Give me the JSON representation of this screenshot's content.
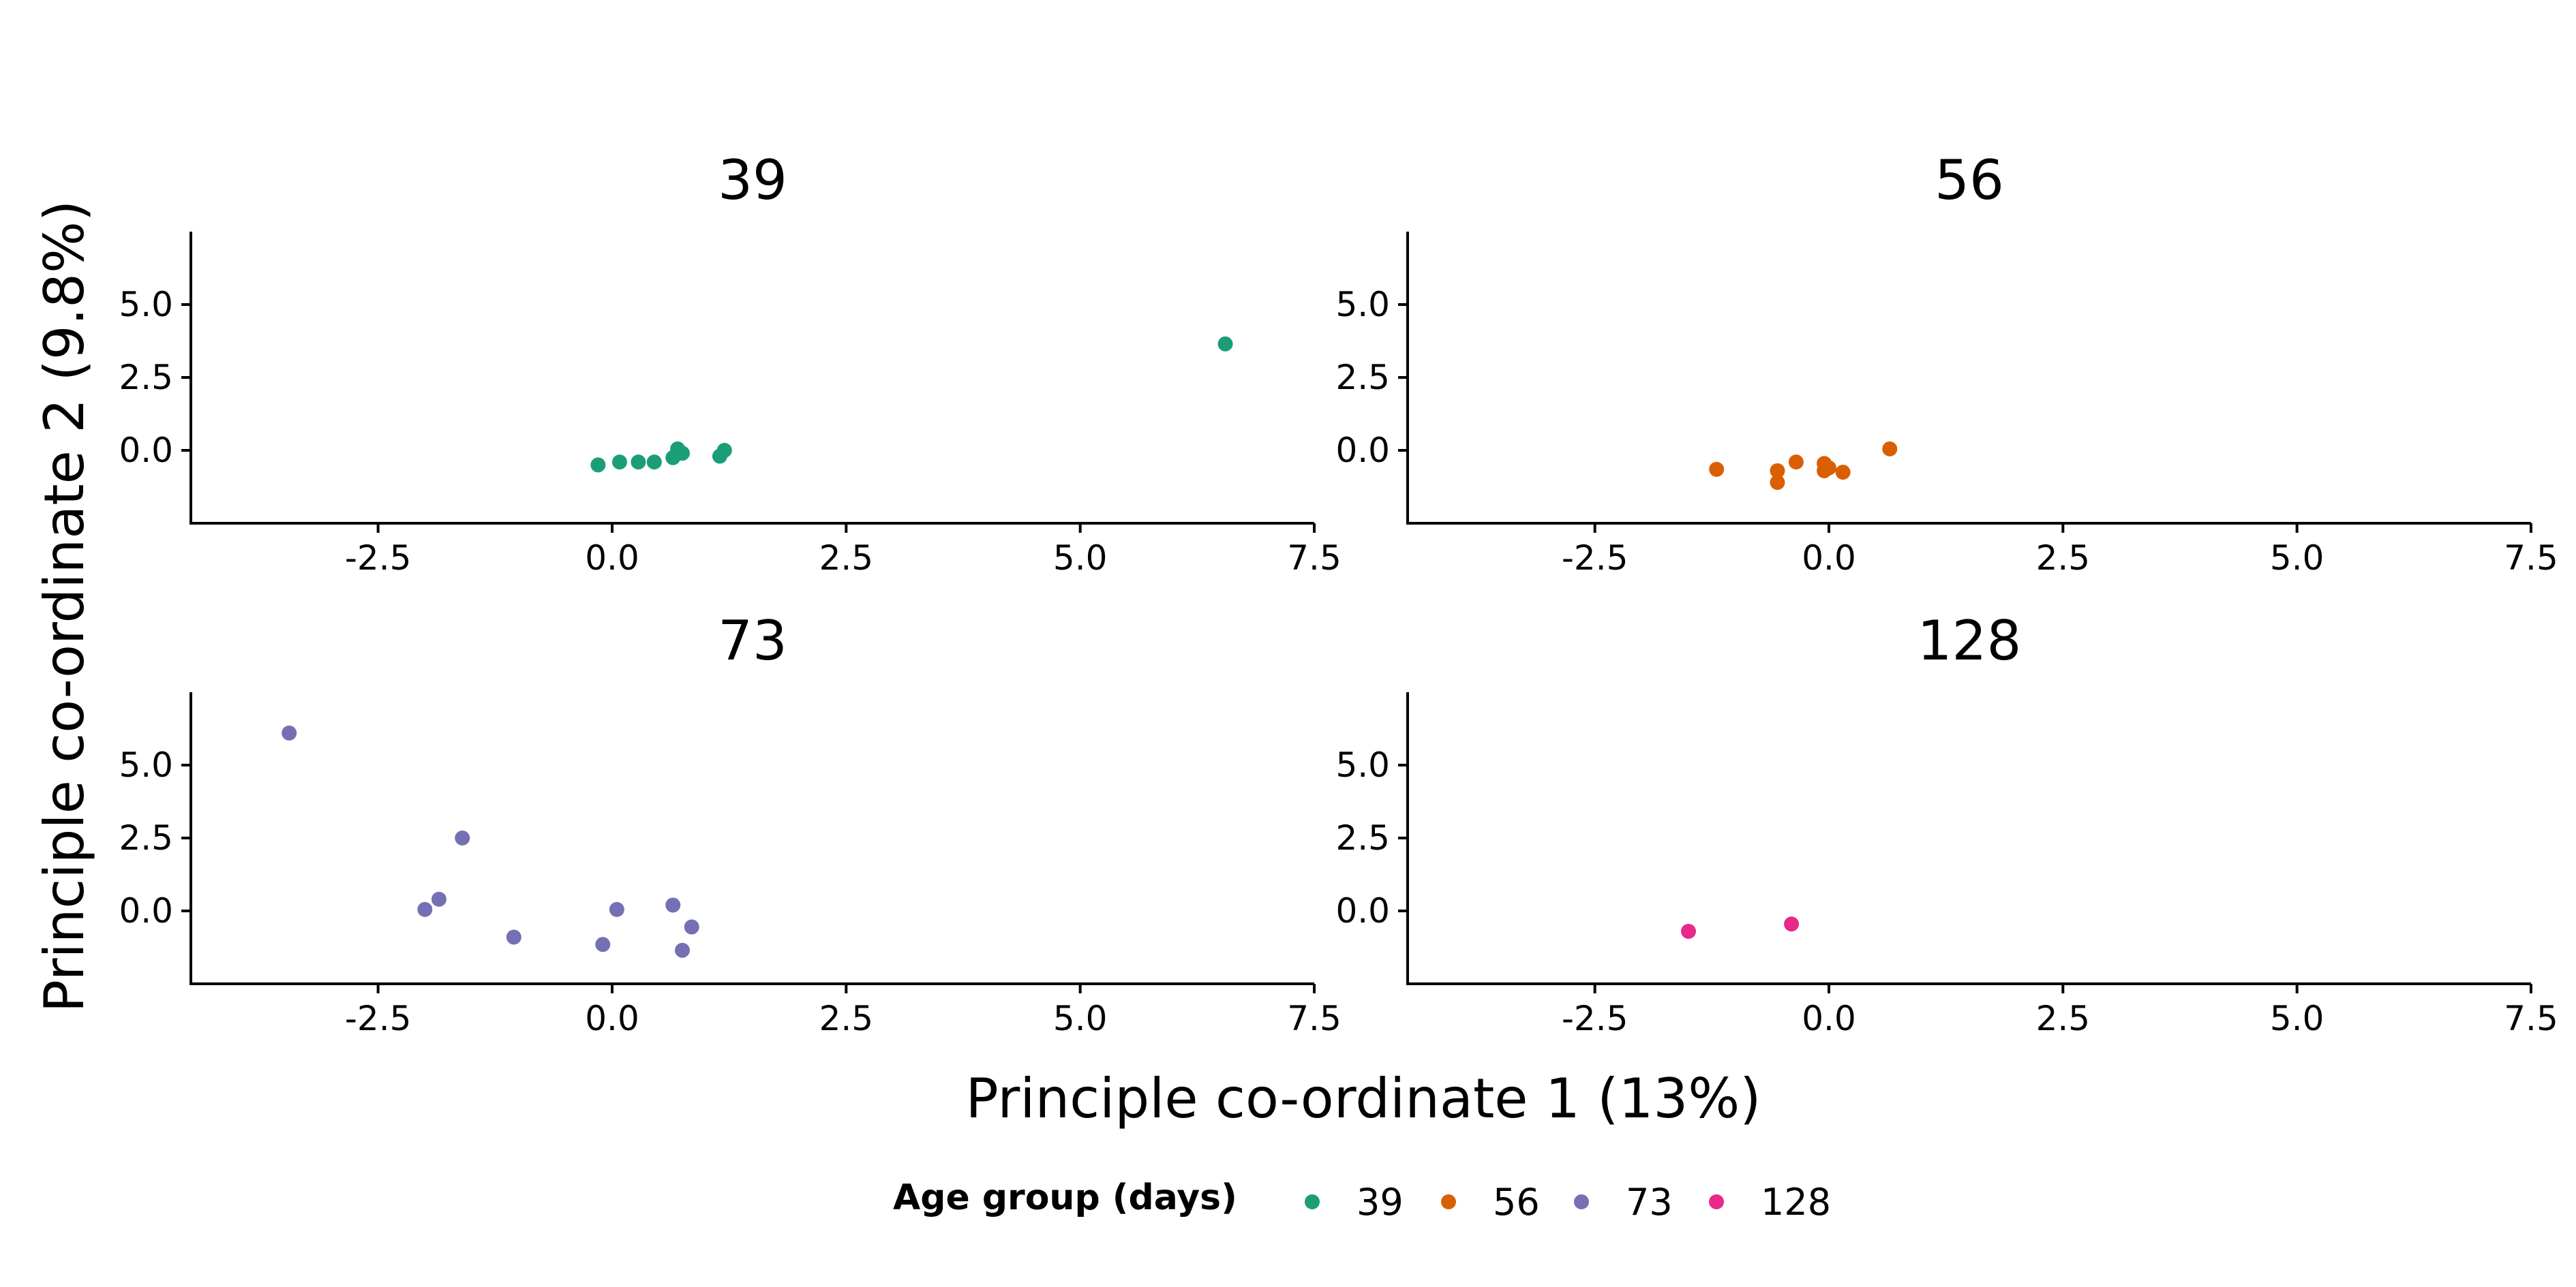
{
  "chart_data": {
    "type": "scatter",
    "xlabel": "Principle co-ordinate 1 (13%)",
    "ylabel": "Principle co-ordinate 2 (9.8%)",
    "xlim": [
      -4.5,
      7.5
    ],
    "ylim": [
      -2.5,
      7.5
    ],
    "x_ticks": [
      -2.5,
      0.0,
      2.5,
      5.0,
      7.5
    ],
    "x_tick_labels": [
      "-2.5",
      "0.0",
      "2.5",
      "5.0",
      "7.5"
    ],
    "y_ticks": [
      0.0,
      2.5,
      5.0
    ],
    "y_tick_labels": [
      "0.0",
      "2.5",
      "5.0"
    ],
    "grid": false,
    "legend": {
      "title": "Age group (days)",
      "position": "bottom",
      "entries": [
        "39",
        "56",
        "73",
        "128"
      ]
    },
    "panels": [
      {
        "title": "39",
        "color": "#1b9e77",
        "points": [
          [
            -0.15,
            -0.5
          ],
          [
            0.08,
            -0.4
          ],
          [
            0.28,
            -0.4
          ],
          [
            0.45,
            -0.4
          ],
          [
            0.65,
            -0.25
          ],
          [
            0.7,
            0.05
          ],
          [
            0.75,
            -0.1
          ],
          [
            1.15,
            -0.2
          ],
          [
            1.2,
            0.0
          ],
          [
            6.55,
            3.65
          ]
        ]
      },
      {
        "title": "56",
        "color": "#d95f02",
        "points": [
          [
            -1.2,
            -0.65
          ],
          [
            -0.55,
            -0.7
          ],
          [
            -0.55,
            -1.1
          ],
          [
            -0.35,
            -0.4
          ],
          [
            -0.05,
            -0.45
          ],
          [
            0.0,
            -0.6
          ],
          [
            -0.05,
            -0.7
          ],
          [
            0.15,
            -0.75
          ],
          [
            0.65,
            0.05
          ]
        ]
      },
      {
        "title": "73",
        "color": "#7570b3",
        "points": [
          [
            -3.45,
            6.1
          ],
          [
            -1.6,
            2.5
          ],
          [
            -1.85,
            0.4
          ],
          [
            -2.0,
            0.05
          ],
          [
            -1.05,
            -0.9
          ],
          [
            0.05,
            0.05
          ],
          [
            -0.1,
            -1.15
          ],
          [
            0.65,
            0.2
          ],
          [
            0.85,
            -0.55
          ],
          [
            0.75,
            -1.35
          ]
        ]
      },
      {
        "title": "128",
        "color": "#e7298a",
        "points": [
          [
            -1.5,
            -0.7
          ],
          [
            -0.4,
            -0.45
          ]
        ]
      }
    ]
  }
}
